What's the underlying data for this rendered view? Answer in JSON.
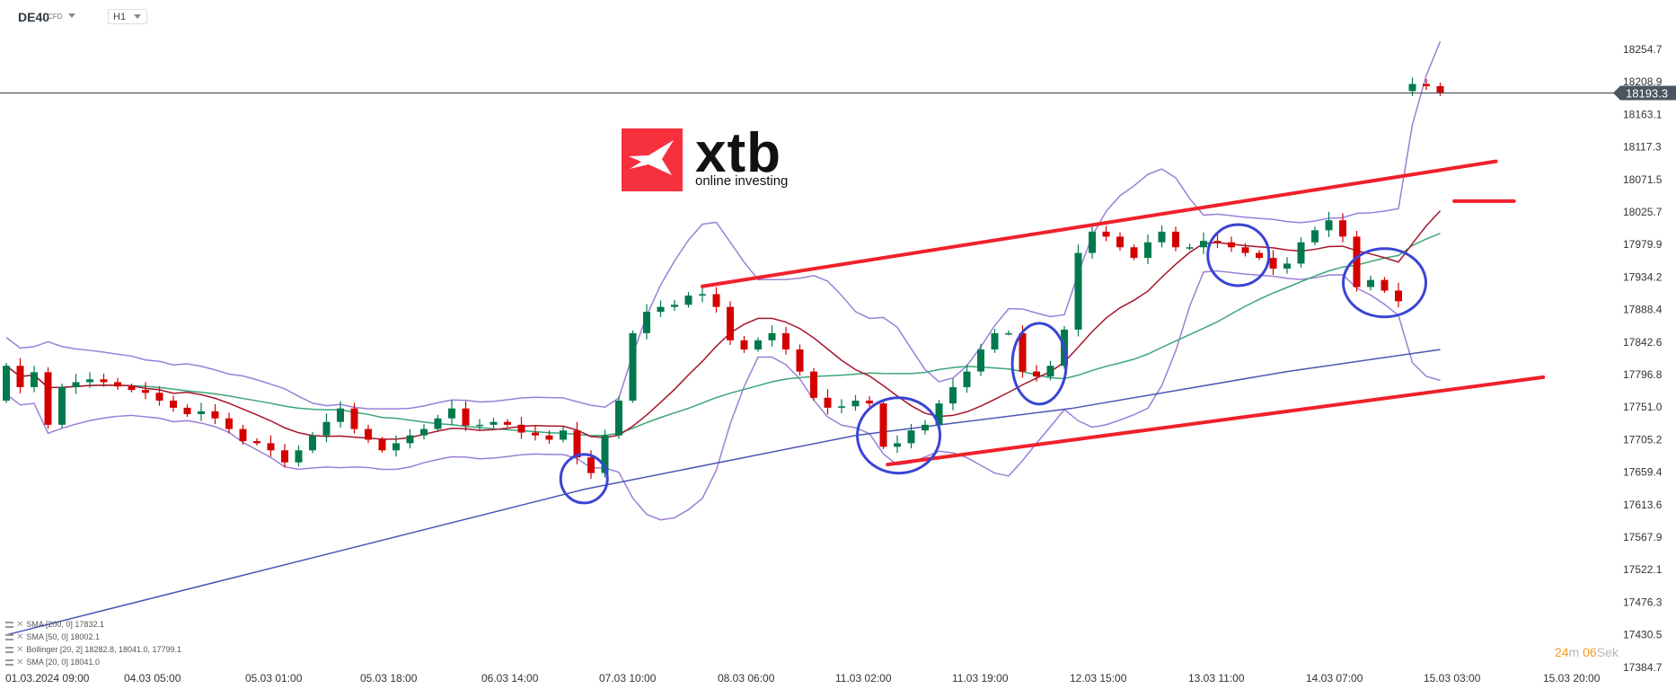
{
  "header": {
    "symbol": "DE40",
    "instrument_type": "CFD",
    "timeframe": "H1"
  },
  "logo": {
    "brand": "xtb",
    "tagline": "online investing"
  },
  "indicators": [
    {
      "label": "SMA [200, 0] 17832.1",
      "color": "#4a55b5"
    },
    {
      "label": "SMA [50, 0] 18002.1",
      "color": "#3aa57a"
    },
    {
      "label": "Bollinger  [20, 2] 18282.8,  18041.0,  17799.1",
      "color": "#9b7fd8"
    },
    {
      "label": "SMA [20, 0] 18041.0",
      "color": "#a8142a"
    }
  ],
  "timer": {
    "minutes": "24",
    "minutes_unit": "m",
    "seconds": "06",
    "seconds_unit": "Sek"
  },
  "current_price": "18193.3",
  "chart_data": {
    "type": "candlestick",
    "y_ticks": [
      "18254.7",
      "18208.9",
      "18163.1",
      "18117.3",
      "18071.5",
      "18025.7",
      "17979.9",
      "17934.2",
      "17888.4",
      "17842.6",
      "17796.8",
      "17751.0",
      "17705.2",
      "17659.4",
      "17613.6",
      "17567.9",
      "17522.1",
      "17476.3",
      "17430.5",
      "17384.7"
    ],
    "ylim": [
      17384.7,
      18254.7
    ],
    "x_ticks": [
      "01.03.2024  09:00",
      "04.03  05:00",
      "05.03  01:00",
      "05.03  18:00",
      "06.03  14:00",
      "07.03  10:00",
      "08.03  06:00",
      "11.03  02:00",
      "11.03  19:00",
      "12.03  15:00",
      "13.03  11:00",
      "14.03  07:00",
      "15.03  03:00",
      "15.03  20:00"
    ],
    "first_open": 17760,
    "closes": [
      17809,
      17779,
      17800,
      17726,
      17779,
      17786,
      17790,
      17786,
      17780,
      17775,
      17771,
      17760,
      17750,
      17741,
      17745,
      17735,
      17720,
      17703,
      17700,
      17690,
      17673,
      17690,
      17711,
      17730,
      17749,
      17720,
      17705,
      17690,
      17700,
      17711,
      17720,
      17735,
      17749,
      17725,
      17726,
      17730,
      17726,
      17715,
      17711,
      17705,
      17718,
      17680,
      17658,
      17711,
      17760,
      17855,
      17885,
      17892,
      17895,
      17908,
      17910,
      17892,
      17845,
      17832,
      17845,
      17855,
      17832,
      17801,
      17764,
      17750,
      17752,
      17760,
      17756,
      17695,
      17700,
      17718,
      17726,
      17756,
      17779,
      17801,
      17832,
      17855,
      17855,
      17801,
      17794,
      17809,
      17860,
      17968,
      17998,
      17991,
      17976,
      17961,
      17983,
      17998,
      17976,
      17976,
      17985,
      17983,
      17976,
      17968,
      17961,
      17946,
      17953,
      17983,
      18000,
      18014,
      17991,
      17920,
      17930,
      17915,
      17900,
      18206,
      18203,
      18193.3
    ],
    "gap_after_index": 100,
    "open_after_gap": 18196,
    "sma200_points": [
      [
        0,
        17430
      ],
      [
        41.5,
        17635
      ],
      [
        61,
        17711
      ],
      [
        76.5,
        17749
      ],
      [
        92,
        17801
      ],
      [
        103,
        17832
      ]
    ],
    "trendlines": [
      {
        "from": [
          50,
          17921
        ],
        "to": [
          107,
          18097
        ],
        "color": "#f0202a"
      },
      {
        "from": [
          63.3,
          17670
        ],
        "to": [
          110.4,
          17793
        ],
        "color": "#f0202a"
      },
      {
        "from": [
          104,
          18041
        ],
        "to": [
          108.3,
          18041
        ],
        "color": "#f0202a"
      }
    ],
    "highlight_circles": [
      [
        41.5,
        17650
      ],
      [
        64.1,
        17711
      ],
      [
        74.2,
        17812
      ],
      [
        88.5,
        17965
      ],
      [
        99,
        17926
      ]
    ],
    "colors": {
      "up": "#007a4d",
      "down": "#d40000",
      "sma20": "#a8142a",
      "sma50": "#3aa57a",
      "sma200": "#4a55b5",
      "bollinger": "#9b7fd8",
      "circle": "#3a44d4",
      "price_line": "#4a5560"
    }
  }
}
